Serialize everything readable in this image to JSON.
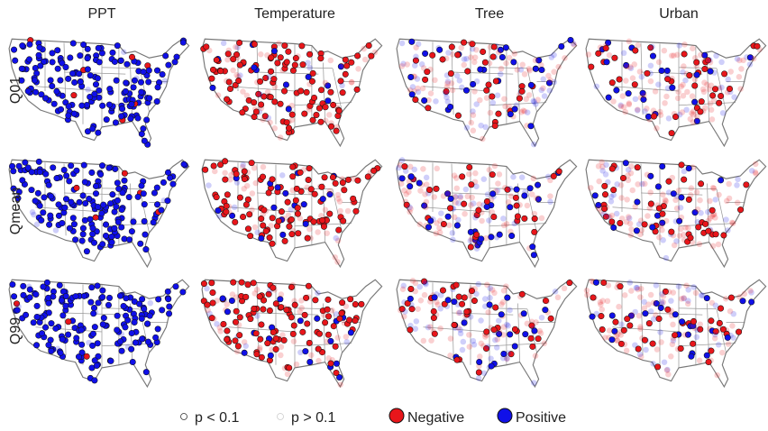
{
  "columns": [
    "PPT",
    "Temperature",
    "Tree",
    "Urban"
  ],
  "rows": [
    "Q01",
    "Qmean",
    "Q99"
  ],
  "legend": {
    "significance": [
      "p < 0.1",
      "p > 0.1"
    ],
    "sign": [
      {
        "label": "Negative",
        "color": "#e8161b"
      },
      {
        "label": "Positive",
        "color": "#1010e8"
      }
    ]
  }
}
